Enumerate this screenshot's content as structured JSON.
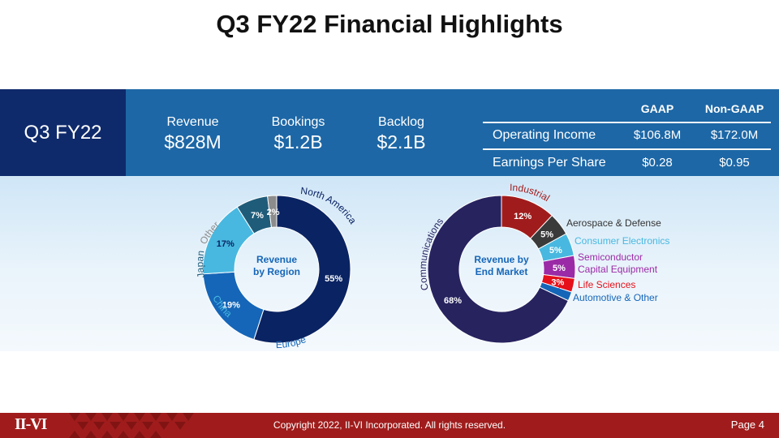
{
  "title": "Q3 FY22 Financial Highlights",
  "period": "Q3 FY22",
  "metrics": [
    {
      "label": "Revenue",
      "value": "$828M"
    },
    {
      "label": "Bookings",
      "value": "$1.2B"
    },
    {
      "label": "Backlog",
      "value": "$2.1B"
    }
  ],
  "table": {
    "headers": [
      "",
      "GAAP",
      "Non-GAAP"
    ],
    "rows": [
      {
        "label": "Operating Income",
        "gaap": "$106.8M",
        "non_gaap": "$172.0M"
      },
      {
        "label": "Earnings Per Share",
        "gaap": "$0.28",
        "non_gaap": "$0.95"
      }
    ]
  },
  "chart_data": [
    {
      "type": "pie",
      "donut": true,
      "title": "Revenue by Region",
      "slices": [
        {
          "label": "North America",
          "value": 55,
          "display": "55%",
          "color": "#0a2362"
        },
        {
          "label": "Europe",
          "value": 19,
          "display": "19%",
          "color": "#1566b8"
        },
        {
          "label": "China",
          "value": 17,
          "display": "17%",
          "color": "#48b8e0"
        },
        {
          "label": "Japan",
          "value": 7,
          "display": "7%",
          "color": "#1f5c7a"
        },
        {
          "label": "Other",
          "value": 2,
          "display": "2%",
          "color": "#8c8c8c"
        }
      ]
    },
    {
      "type": "pie",
      "donut": true,
      "title": "Revenue by End Market",
      "slices": [
        {
          "label": "Industrial",
          "value": 12,
          "display": "12%",
          "color": "#a01c1c"
        },
        {
          "label": "Aerospace & Defense",
          "value": 5,
          "display": "5%",
          "color": "#3a3a3a"
        },
        {
          "label": "Consumer Electronics",
          "value": 5,
          "display": "5%",
          "color": "#48b8e0"
        },
        {
          "label": "Semiconductor Capital Equipment",
          "value": 5,
          "display": "5%",
          "color": "#9b2aa6"
        },
        {
          "label": "Life Sciences",
          "value": 3,
          "display": "3%",
          "color": "#e5101a"
        },
        {
          "label": "Automotive & Other",
          "value": 2,
          "display": "2%",
          "color": "#1566b8"
        },
        {
          "label": "Communications",
          "value": 68,
          "display": "68%",
          "color": "#27235f"
        }
      ]
    }
  ],
  "labels": {
    "region_center_1": "Revenue",
    "region_center_2": "by Region",
    "market_center_1": "Revenue by",
    "market_center_2": "End Market",
    "semi_line1": "Semiconductor",
    "semi_line2": "Capital Equipment"
  },
  "footer": {
    "logo": "II-VI",
    "copyright": "Copyright 2022, II-VI Incorporated. All rights reserved.",
    "page": "Page 4"
  }
}
